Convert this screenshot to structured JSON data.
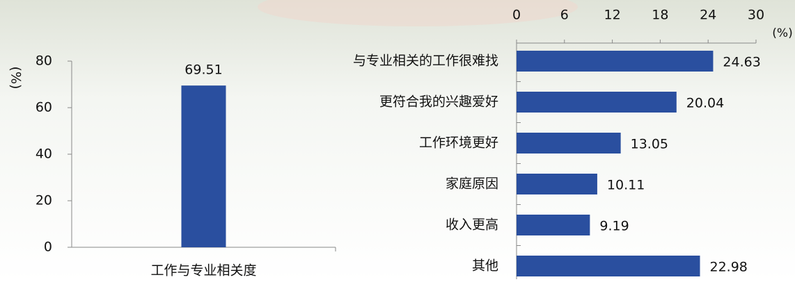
{
  "chart_data": [
    {
      "type": "bar",
      "y_label": "(%)",
      "categories": [
        "工作与专业相关度"
      ],
      "values": [
        69.51
      ],
      "color": "#2a4f9f",
      "ylim": [
        0,
        80
      ],
      "yticks": [
        0,
        20,
        40,
        60,
        80
      ]
    },
    {
      "type": "barh",
      "x_label": "(%)",
      "categories": [
        "与专业相关的工作很难找",
        "更符合我的兴趣爱好",
        "工作环境更好",
        "家庭原因",
        "收入更高",
        "其他"
      ],
      "values": [
        24.63,
        20.04,
        13.05,
        10.11,
        9.19,
        22.98
      ],
      "color": "#2a4f9f",
      "xlim": [
        0,
        30
      ],
      "xticks": [
        0,
        6,
        12,
        18,
        24,
        30
      ]
    }
  ]
}
